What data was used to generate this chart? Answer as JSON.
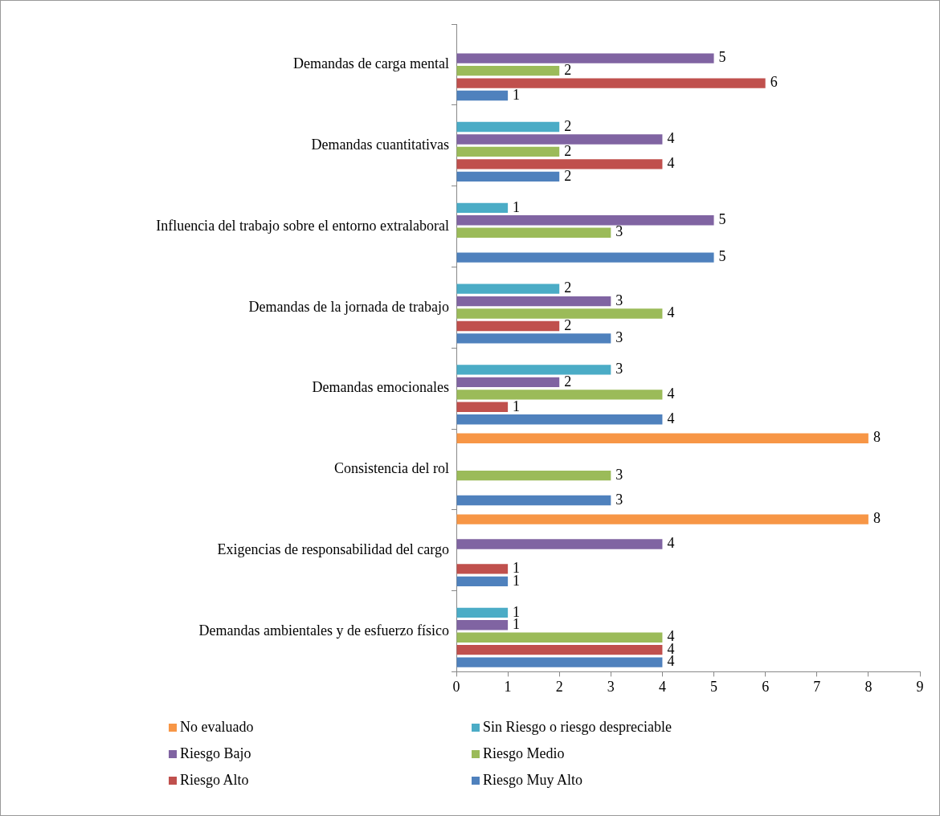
{
  "chart_data": {
    "type": "bar",
    "orientation": "horizontal",
    "categories": [
      "Demandas de carga mental",
      "Demandas cuantitativas",
      "Influencia del trabajo sobre el entorno extralaboral",
      "Demandas de la jornada de trabajo",
      "Demandas emocionales",
      "Consistencia del rol",
      "Exigencias de responsabilidad del cargo",
      "Demandas ambientales y de esfuerzo físico"
    ],
    "series": [
      {
        "name": "No evaluado",
        "color": "#f79646",
        "values": [
          null,
          null,
          null,
          null,
          null,
          8,
          8,
          null
        ]
      },
      {
        "name": "Sin Riesgo o riesgo despreciable",
        "color": "#4bacc6",
        "values": [
          null,
          2,
          1,
          2,
          3,
          null,
          null,
          1
        ]
      },
      {
        "name": "Riesgo Bajo",
        "color": "#8064a2",
        "values": [
          5,
          4,
          5,
          3,
          2,
          null,
          4,
          1
        ]
      },
      {
        "name": "Riesgo Medio",
        "color": "#9bbb59",
        "values": [
          2,
          2,
          3,
          4,
          4,
          3,
          null,
          4
        ]
      },
      {
        "name": "Riesgo Alto",
        "color": "#c0504d",
        "values": [
          6,
          4,
          null,
          2,
          1,
          null,
          1,
          4
        ]
      },
      {
        "name": "Riesgo Muy Alto",
        "color": "#4f81bd",
        "values": [
          1,
          2,
          5,
          3,
          4,
          3,
          1,
          4
        ]
      }
    ],
    "xlim": [
      0,
      9
    ],
    "xticks": [
      0,
      1,
      2,
      3,
      4,
      5,
      6,
      7,
      8,
      9
    ],
    "data_labels": true,
    "grid": false,
    "legend": "bottom"
  }
}
